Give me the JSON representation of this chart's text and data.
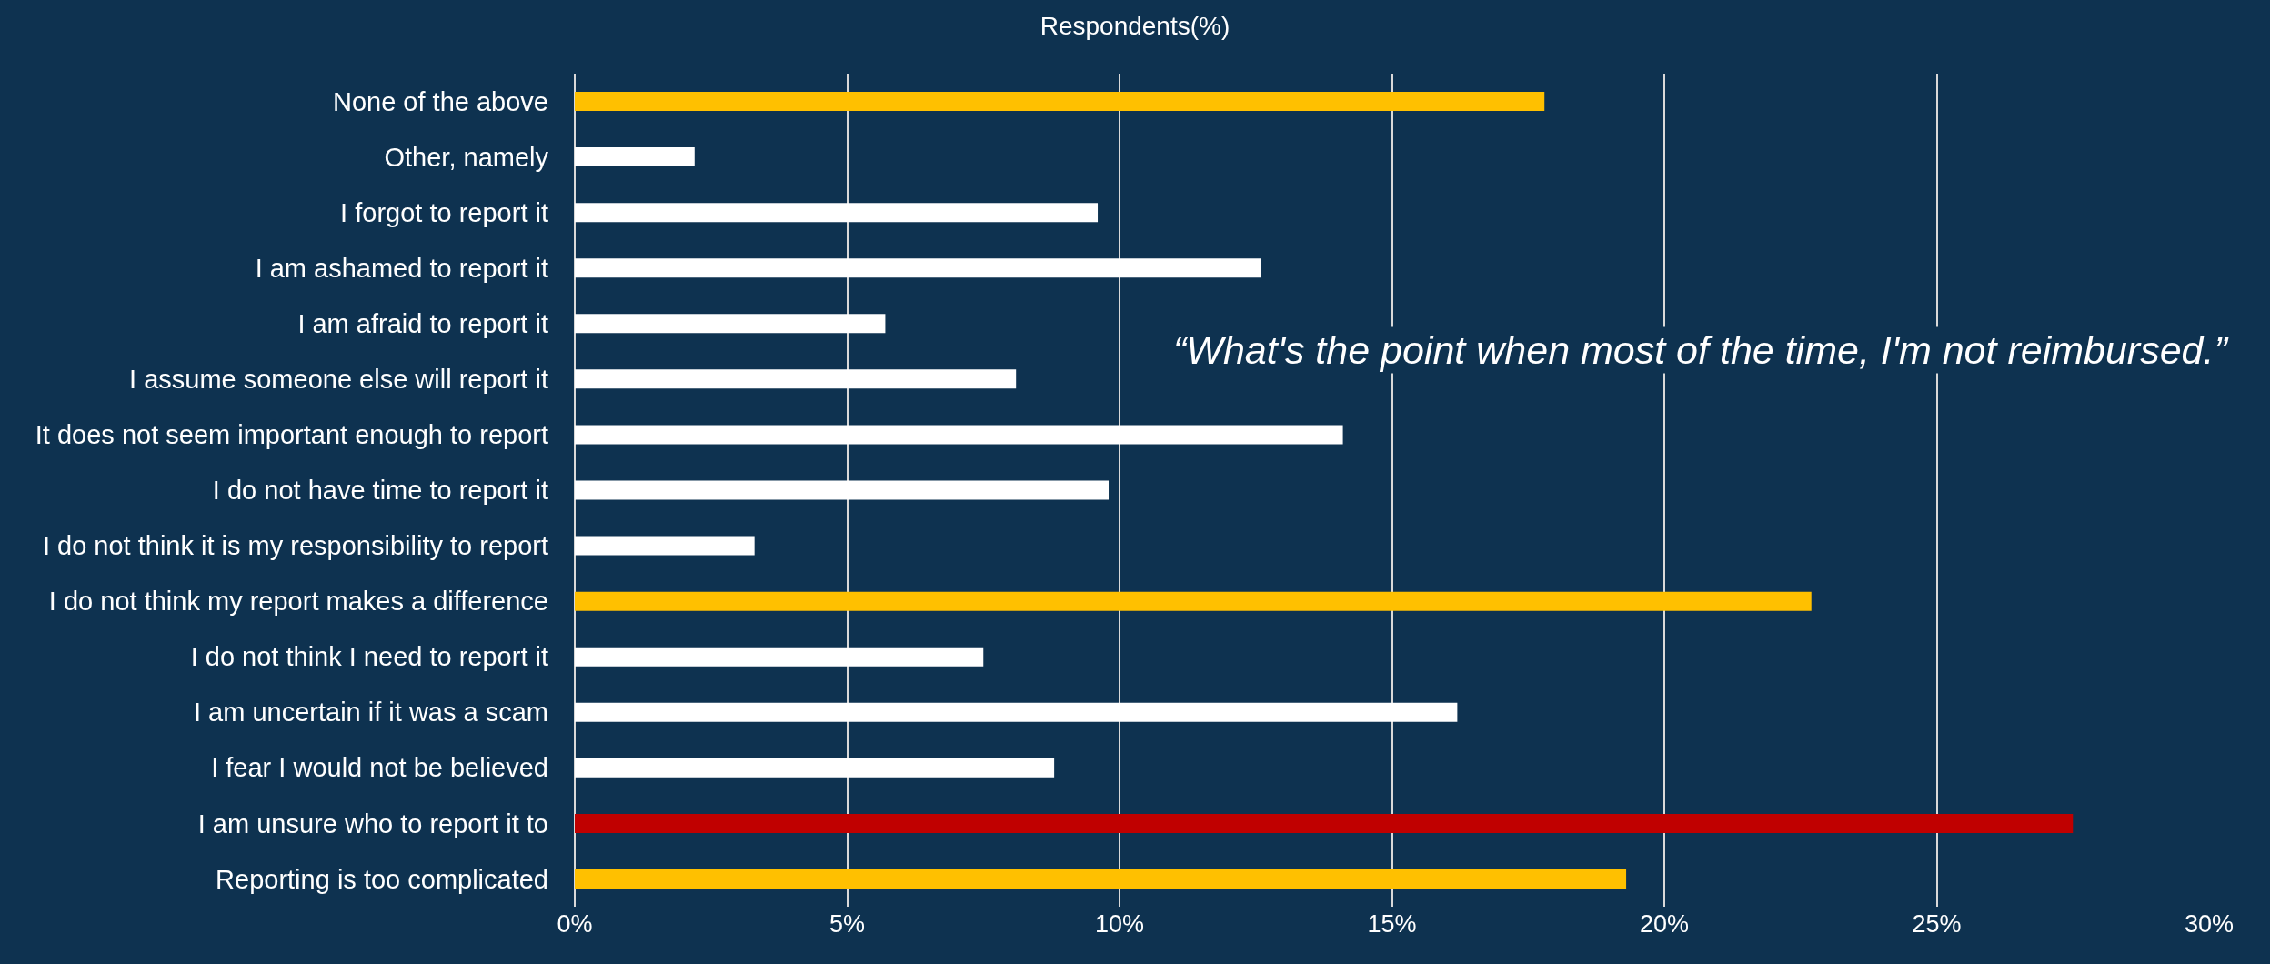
{
  "chart_data": {
    "type": "bar",
    "orientation": "horizontal",
    "title": "Respondents(%)",
    "categories": [
      "None of the above",
      "Other, namely",
      "I forgot to report it",
      "I am ashamed to report it",
      "I am afraid to report it",
      "I assume someone else will report it",
      "It does not seem important enough to report",
      "I do not have time to report it",
      "I do not think it is my responsibility to report",
      "I do not think my report makes a difference",
      "I do not think I need to report it",
      "I am uncertain if it was a scam",
      "I fear I would not be believed",
      "I am unsure who to report it to",
      "Reporting is too complicated"
    ],
    "values": [
      17.8,
      2.2,
      9.6,
      12.6,
      5.7,
      8.1,
      14.1,
      9.8,
      3.3,
      22.7,
      7.5,
      16.2,
      8.8,
      27.5,
      19.3
    ],
    "colors": [
      "#ffc000",
      "#ffffff",
      "#ffffff",
      "#ffffff",
      "#ffffff",
      "#ffffff",
      "#ffffff",
      "#ffffff",
      "#ffffff",
      "#ffc000",
      "#ffffff",
      "#ffffff",
      "#ffffff",
      "#c00000",
      "#ffc000"
    ],
    "xlim": [
      0,
      30
    ],
    "xticks": [
      {
        "value": 0,
        "label": "0%"
      },
      {
        "value": 5,
        "label": "5%"
      },
      {
        "value": 10,
        "label": "10%"
      },
      {
        "value": 15,
        "label": "15%"
      },
      {
        "value": 20,
        "label": "20%"
      },
      {
        "value": 25,
        "label": "25%"
      },
      {
        "value": 30,
        "label": "30%"
      }
    ],
    "grid": "x",
    "annotations": [
      "“What's the point when most of the time, I'm not reimbursed.”"
    ]
  }
}
